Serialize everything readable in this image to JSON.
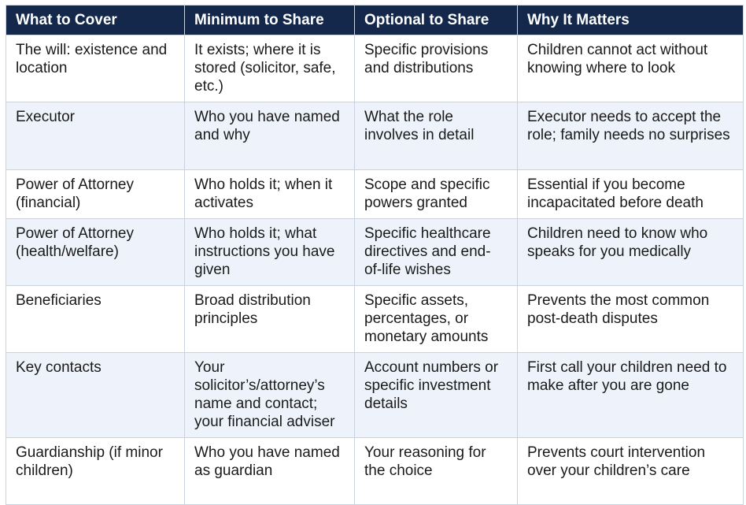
{
  "table": {
    "header": [
      "What to Cover",
      "Minimum to Share",
      "Optional to Share",
      "Why It Matters"
    ],
    "rows": [
      [
        "The will: existence and location",
        "It exists; where it is stored (solicitor, safe, etc.)",
        "Specific provisions and distributions",
        "Children cannot act without knowing where to look"
      ],
      [
        "Executor",
        "Who you have named and why",
        "What the role involves in detail",
        "Executor needs to accept the role; family needs no surprises"
      ],
      [
        "Power of Attorney (financial)",
        "Who holds it; when it activates",
        "Scope and specific powers granted",
        "Essential if you become incapacitated before death"
      ],
      [
        "Power of Attorney (health/welfare)",
        "Who holds it; what instructions you have given",
        "Specific healthcare directives and end-of-life wishes",
        "Children need to know who speaks for you medically"
      ],
      [
        "Beneficiaries",
        "Broad distribution principles",
        "Specific assets, percentages, or monetary amounts",
        "Prevents the most common post-death disputes"
      ],
      [
        "Key contacts",
        "Your solicitor’s/attorney’s name and contact; your financial adviser",
        "Account numbers or specific investment details",
        "First call your children need to make after you are gone"
      ],
      [
        "Guardianship (if minor children)",
        "Who you have named as guardian",
        "Your reasoning for the choice",
        "Prevents court intervention over your children’s care"
      ]
    ]
  }
}
